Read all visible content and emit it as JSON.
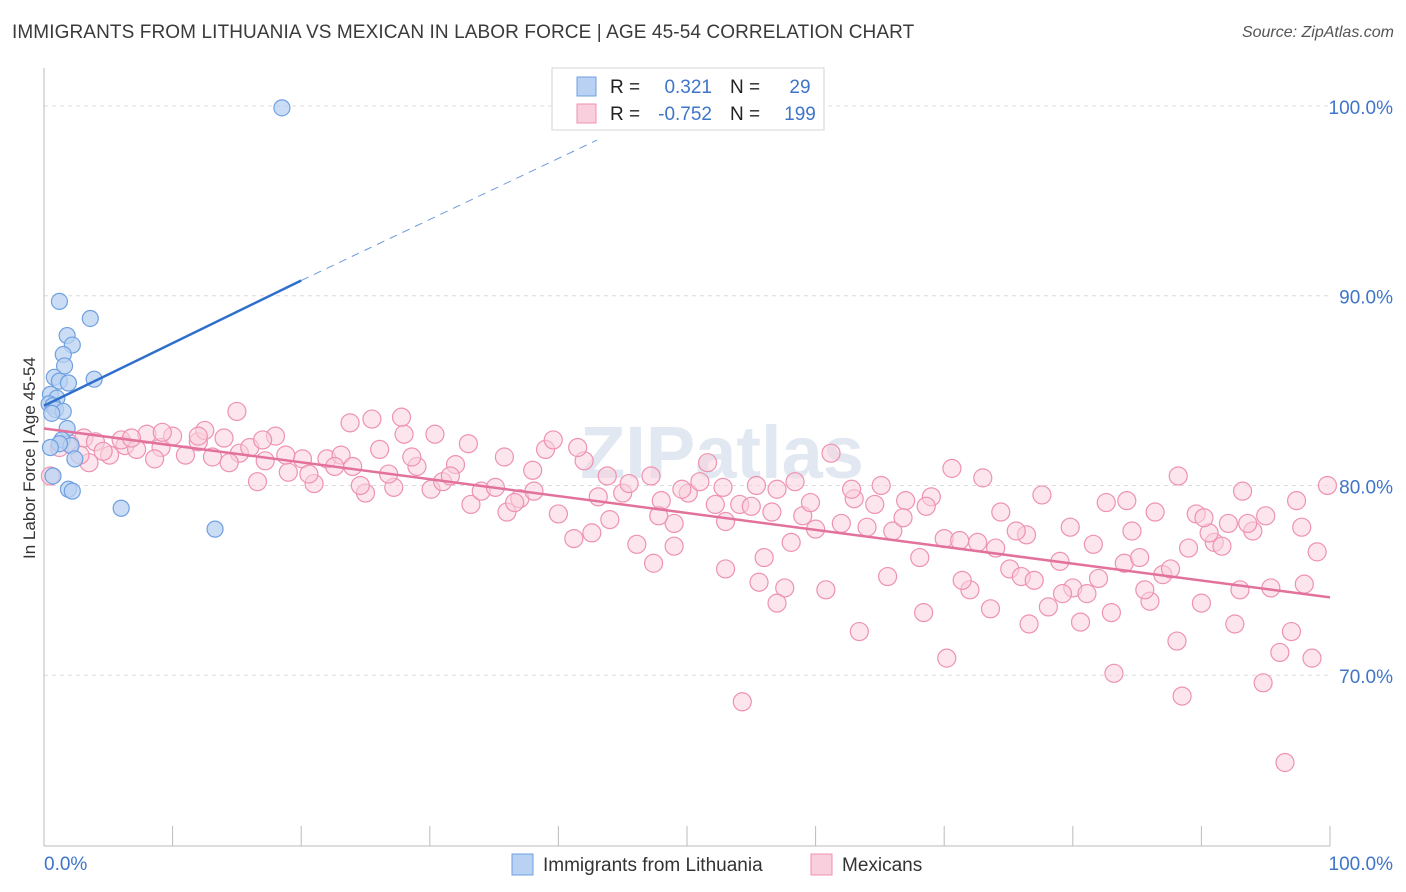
{
  "header": {
    "title": "IMMIGRANTS FROM LITHUANIA VS MEXICAN IN LABOR FORCE | AGE 45-54 CORRELATION CHART",
    "source": "Source: ZipAtlas.com"
  },
  "watermark": "ZIPatlas",
  "chart_data": {
    "type": "scatter",
    "xlabel": "",
    "ylabel": "In Labor Force | Age 45-54",
    "xlim": [
      0,
      100
    ],
    "ylim": [
      61,
      102
    ],
    "x_tick_labels": [
      "0.0%",
      "100.0%"
    ],
    "y_ticks": [
      {
        "value": 100,
        "label": "100.0%"
      },
      {
        "value": 90,
        "label": "90.0%"
      },
      {
        "value": 80,
        "label": "80.0%"
      },
      {
        "value": 70,
        "label": "70.0%"
      }
    ],
    "grid": "horizontal-dashed",
    "legend_position": "top-center",
    "legend": [
      {
        "r_label": "R =",
        "r_value": "0.321",
        "n_label": "N =",
        "n_value": "29"
      },
      {
        "r_label": "R =",
        "r_value": "-0.752",
        "n_label": "N =",
        "n_value": "199"
      }
    ],
    "series": [
      {
        "name": "Immigrants from Lithuania",
        "color": "#6fa0e0",
        "fill": "#b9d1f2",
        "line_color": "#2f6fcc",
        "trend": {
          "x0": 0,
          "y0": 84.2,
          "x1": 20,
          "y1": 90.8,
          "dash_x1": 43,
          "dash_y1": 98.2
        },
        "points": [
          [
            18.5,
            99.9
          ],
          [
            1.2,
            89.7
          ],
          [
            3.6,
            88.8
          ],
          [
            1.8,
            87.9
          ],
          [
            2.2,
            87.4
          ],
          [
            1.5,
            86.9
          ],
          [
            1.6,
            86.3
          ],
          [
            0.8,
            85.7
          ],
          [
            1.2,
            85.5
          ],
          [
            1.9,
            85.4
          ],
          [
            3.9,
            85.6
          ],
          [
            0.5,
            84.8
          ],
          [
            1.0,
            84.6
          ],
          [
            0.4,
            84.3
          ],
          [
            0.7,
            84.2
          ],
          [
            0.9,
            84.0
          ],
          [
            1.5,
            83.9
          ],
          [
            0.6,
            83.8
          ],
          [
            1.8,
            83.0
          ],
          [
            1.4,
            82.4
          ],
          [
            2.1,
            82.1
          ],
          [
            1.2,
            82.2
          ],
          [
            0.5,
            82.0
          ],
          [
            2.4,
            81.4
          ],
          [
            1.9,
            79.8
          ],
          [
            2.2,
            79.7
          ],
          [
            6.0,
            78.8
          ],
          [
            13.3,
            77.7
          ],
          [
            0.7,
            80.5
          ]
        ]
      },
      {
        "name": "Mexicans",
        "color": "#ee92b2",
        "fill": "#f9cfdd",
        "line_color": "#e2729b",
        "trend": {
          "x0": 0,
          "y0": 83.0,
          "x1": 100,
          "y1": 74.1
        },
        "points": [
          [
            0.5,
            80.5
          ],
          [
            1.2,
            82.0
          ],
          [
            2.0,
            82.2
          ],
          [
            3.1,
            82.5
          ],
          [
            4.0,
            82.3
          ],
          [
            5.1,
            81.6
          ],
          [
            6.3,
            82.1
          ],
          [
            7.2,
            81.9
          ],
          [
            8.0,
            82.7
          ],
          [
            9.1,
            82.0
          ],
          [
            10.0,
            82.6
          ],
          [
            11.0,
            81.6
          ],
          [
            12.0,
            82.3
          ],
          [
            13.1,
            81.5
          ],
          [
            14.0,
            82.5
          ],
          [
            15.2,
            81.7
          ],
          [
            16.0,
            82.0
          ],
          [
            17.2,
            81.3
          ],
          [
            18.0,
            82.6
          ],
          [
            19.0,
            80.7
          ],
          [
            20.1,
            81.4
          ],
          [
            21.0,
            80.1
          ],
          [
            22.0,
            81.4
          ],
          [
            23.1,
            81.6
          ],
          [
            24.0,
            81.0
          ],
          [
            25.0,
            79.6
          ],
          [
            26.1,
            81.9
          ],
          [
            27.2,
            79.9
          ],
          [
            28.0,
            82.7
          ],
          [
            29.0,
            81.0
          ],
          [
            30.1,
            79.8
          ],
          [
            31.0,
            80.2
          ],
          [
            32.0,
            81.1
          ],
          [
            33.2,
            79.0
          ],
          [
            34.0,
            79.7
          ],
          [
            35.1,
            79.9
          ],
          [
            36.0,
            78.6
          ],
          [
            37.0,
            79.3
          ],
          [
            38.1,
            79.7
          ],
          [
            39.0,
            81.9
          ],
          [
            40.0,
            78.5
          ],
          [
            41.2,
            77.2
          ],
          [
            42.0,
            81.3
          ],
          [
            43.1,
            79.4
          ],
          [
            44.0,
            78.2
          ],
          [
            45.0,
            79.6
          ],
          [
            46.1,
            76.9
          ],
          [
            47.2,
            80.5
          ],
          [
            48.0,
            79.2
          ],
          [
            49.0,
            78.0
          ],
          [
            50.1,
            79.6
          ],
          [
            51.0,
            80.2
          ],
          [
            52.2,
            79.0
          ],
          [
            53.0,
            78.1
          ],
          [
            54.1,
            79.0
          ],
          [
            55.0,
            78.9
          ],
          [
            56.0,
            76.2
          ],
          [
            57.0,
            79.8
          ],
          [
            58.1,
            77.0
          ],
          [
            59.0,
            78.4
          ],
          [
            60.0,
            77.7
          ],
          [
            61.2,
            81.7
          ],
          [
            62.0,
            78.0
          ],
          [
            63.0,
            79.3
          ],
          [
            64.0,
            77.8
          ],
          [
            65.1,
            80.0
          ],
          [
            66.0,
            77.6
          ],
          [
            67.0,
            79.2
          ],
          [
            68.1,
            76.2
          ],
          [
            69.0,
            79.4
          ],
          [
            70.0,
            77.2
          ],
          [
            71.2,
            77.1
          ],
          [
            72.0,
            74.5
          ],
          [
            73.0,
            80.4
          ],
          [
            74.0,
            76.7
          ],
          [
            75.1,
            75.6
          ],
          [
            76.0,
            75.2
          ],
          [
            77.0,
            75.0
          ],
          [
            78.1,
            73.6
          ],
          [
            79.0,
            76.0
          ],
          [
            80.0,
            74.6
          ],
          [
            81.1,
            74.3
          ],
          [
            82.0,
            75.1
          ],
          [
            83.0,
            73.3
          ],
          [
            84.0,
            75.9
          ],
          [
            85.2,
            76.2
          ],
          [
            86.0,
            73.9
          ],
          [
            87.0,
            75.3
          ],
          [
            88.1,
            71.8
          ],
          [
            89.0,
            76.7
          ],
          [
            90.0,
            73.8
          ],
          [
            91.0,
            77.0
          ],
          [
            92.1,
            78.0
          ],
          [
            93.0,
            74.5
          ],
          [
            94.0,
            77.6
          ],
          [
            95.0,
            78.4
          ],
          [
            96.1,
            71.2
          ],
          [
            97.0,
            72.3
          ],
          [
            98.0,
            74.8
          ],
          [
            99.0,
            76.5
          ],
          [
            99.8,
            80.0
          ],
          [
            98.6,
            70.9
          ],
          [
            96.5,
            65.4
          ],
          [
            94.8,
            69.6
          ],
          [
            88.5,
            68.9
          ],
          [
            83.2,
            70.1
          ],
          [
            70.2,
            70.9
          ],
          [
            54.3,
            68.6
          ],
          [
            3.5,
            81.2
          ],
          [
            6.0,
            82.4
          ],
          [
            9.2,
            82.8
          ],
          [
            12.5,
            82.9
          ],
          [
            15.0,
            83.9
          ],
          [
            17.0,
            82.4
          ],
          [
            20.6,
            80.6
          ],
          [
            23.8,
            83.3
          ],
          [
            25.5,
            83.5
          ],
          [
            27.8,
            83.6
          ],
          [
            30.4,
            82.7
          ],
          [
            33.0,
            82.2
          ],
          [
            35.8,
            81.5
          ],
          [
            38.0,
            80.8
          ],
          [
            39.6,
            82.4
          ],
          [
            41.5,
            82.0
          ],
          [
            43.8,
            80.5
          ],
          [
            45.5,
            80.1
          ],
          [
            47.8,
            78.4
          ],
          [
            49.6,
            79.8
          ],
          [
            51.6,
            81.2
          ],
          [
            52.8,
            79.9
          ],
          [
            55.4,
            80.0
          ],
          [
            56.6,
            78.6
          ],
          [
            58.4,
            80.2
          ],
          [
            59.6,
            79.1
          ],
          [
            62.8,
            79.8
          ],
          [
            64.6,
            79.0
          ],
          [
            66.8,
            78.3
          ],
          [
            68.6,
            78.9
          ],
          [
            70.6,
            80.9
          ],
          [
            72.6,
            77.0
          ],
          [
            74.4,
            78.6
          ],
          [
            76.4,
            77.4
          ],
          [
            77.6,
            79.5
          ],
          [
            79.8,
            77.8
          ],
          [
            81.6,
            76.9
          ],
          [
            82.6,
            79.1
          ],
          [
            84.6,
            77.6
          ],
          [
            86.4,
            78.6
          ],
          [
            87.6,
            75.6
          ],
          [
            89.6,
            78.5
          ],
          [
            90.6,
            77.5
          ],
          [
            91.6,
            76.8
          ],
          [
            93.6,
            78.0
          ],
          [
            95.4,
            74.6
          ],
          [
            97.4,
            79.2
          ],
          [
            92.6,
            72.7
          ],
          [
            85.6,
            74.5
          ],
          [
            80.6,
            72.8
          ],
          [
            76.6,
            72.7
          ],
          [
            73.6,
            73.5
          ],
          [
            68.4,
            73.3
          ],
          [
            63.4,
            72.3
          ],
          [
            57.6,
            74.6
          ],
          [
            55.6,
            74.9
          ],
          [
            57.0,
            73.8
          ],
          [
            53.0,
            75.6
          ],
          [
            47.4,
            75.9
          ],
          [
            42.6,
            77.5
          ],
          [
            49.0,
            76.8
          ],
          [
            60.8,
            74.5
          ],
          [
            65.6,
            75.2
          ],
          [
            71.4,
            75.0
          ],
          [
            75.6,
            77.6
          ],
          [
            79.2,
            74.3
          ],
          [
            84.2,
            79.2
          ],
          [
            88.2,
            80.5
          ],
          [
            90.2,
            78.3
          ],
          [
            93.2,
            79.7
          ],
          [
            97.8,
            77.8
          ],
          [
            36.6,
            79.1
          ],
          [
            31.6,
            80.5
          ],
          [
            28.6,
            81.5
          ],
          [
            26.8,
            80.6
          ],
          [
            24.6,
            80.0
          ],
          [
            22.6,
            81.0
          ],
          [
            18.8,
            81.6
          ],
          [
            16.6,
            80.2
          ],
          [
            14.4,
            81.2
          ],
          [
            12.0,
            82.6
          ],
          [
            8.6,
            81.4
          ],
          [
            6.8,
            82.5
          ],
          [
            4.6,
            81.8
          ],
          [
            2.8,
            81.6
          ]
        ]
      }
    ]
  }
}
